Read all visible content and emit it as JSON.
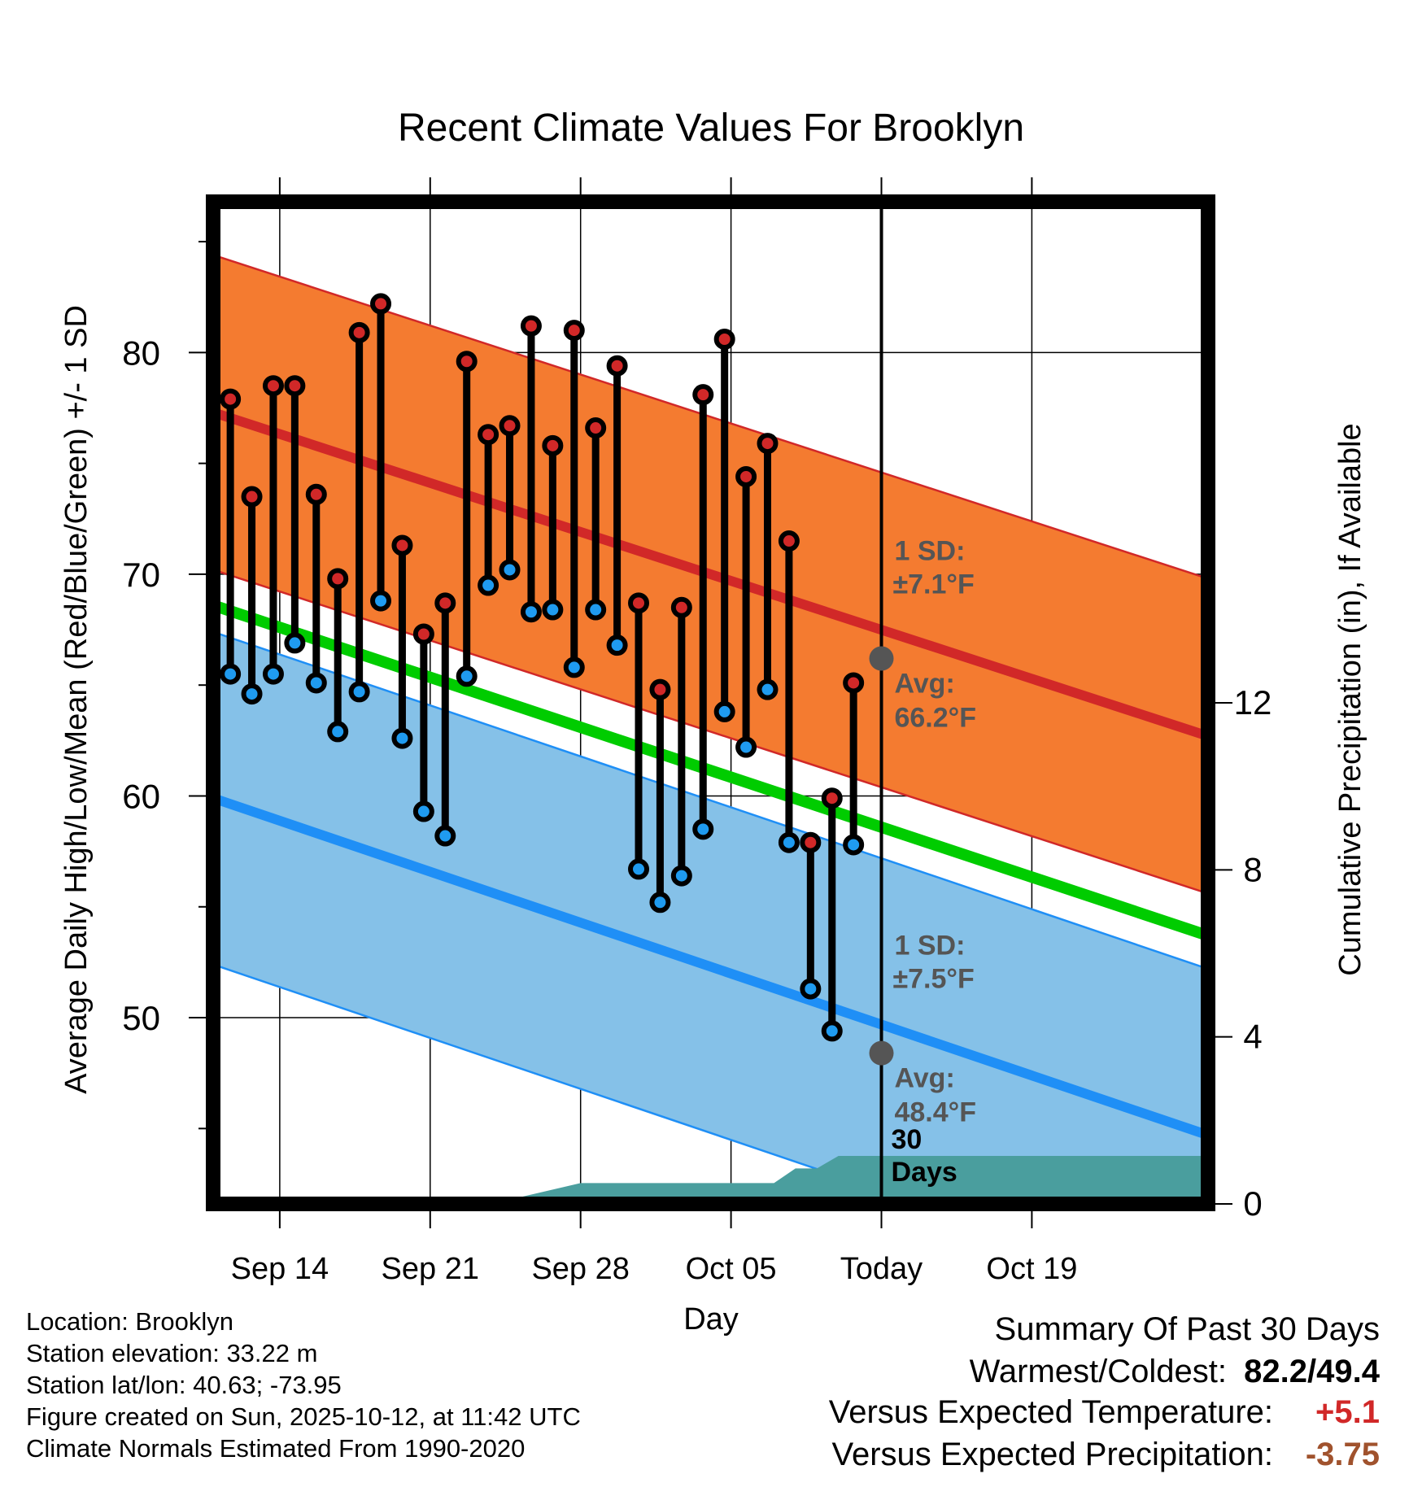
{
  "title": "Recent Climate Values For Brooklyn",
  "chart_data": {
    "type": "line",
    "title": "Recent Climate Values For Brooklyn",
    "xlabel": "Day",
    "ylabel": "Average Daily High/Low/Mean (Red/Blue/Green) +/- 1 SD",
    "y2label": "Cumulative Precipitation (in), If Available",
    "ylim": [
      41.6,
      86.8
    ],
    "y2lim": [
      0,
      24
    ],
    "yticks": [
      50,
      60,
      70,
      80
    ],
    "y2ticks": [
      0,
      4,
      8,
      12
    ],
    "xlim": [
      -0.1,
      46.2
    ],
    "x_tick_labels": [
      {
        "day": 3,
        "label": "Sep 14"
      },
      {
        "day": 10,
        "label": "Sep 21"
      },
      {
        "day": 17,
        "label": "Sep 28"
      },
      {
        "day": 24,
        "label": "Oct 05"
      },
      {
        "day": 31,
        "label": "Today"
      },
      {
        "day": 38,
        "label": "Oct 19"
      }
    ],
    "observed": {
      "days": [
        0.7,
        1.7,
        2.7,
        3.7,
        4.7,
        5.7,
        6.7,
        7.7,
        8.7,
        9.7,
        10.7,
        11.7,
        12.7,
        13.7,
        14.7,
        15.7,
        16.7,
        17.7,
        18.7,
        19.7,
        20.7,
        21.7,
        22.7,
        23.7,
        24.7,
        25.7,
        26.7,
        27.7,
        28.7,
        29.7
      ],
      "highs": [
        77.9,
        73.5,
        78.5,
        78.5,
        73.6,
        69.8,
        80.9,
        82.2,
        71.3,
        67.3,
        68.7,
        79.6,
        76.3,
        76.7,
        81.2,
        75.8,
        81.0,
        76.6,
        79.4,
        68.7,
        64.8,
        68.5,
        78.1,
        80.6,
        74.4,
        75.9,
        71.5,
        57.9,
        59.9,
        65.1
      ],
      "lows": [
        65.5,
        64.6,
        65.5,
        66.9,
        65.1,
        62.9,
        64.7,
        68.8,
        62.6,
        59.3,
        58.2,
        65.4,
        69.5,
        70.2,
        68.3,
        68.4,
        65.8,
        68.4,
        66.8,
        56.7,
        55.2,
        56.4,
        58.5,
        63.8,
        62.2,
        64.8,
        57.9,
        51.3,
        49.4,
        57.8
      ]
    },
    "normal_high": {
      "start": 77.3,
      "end": 62.7,
      "sd": 7.1
    },
    "normal_low": {
      "start": 59.9,
      "end": 44.7,
      "sd": 7.5
    },
    "normal_mean": {
      "start": 68.6,
      "end": 53.7
    },
    "precip_cumulative": {
      "days": [
        -0.1,
        13.1,
        14.1,
        17.0,
        26.0,
        27.0,
        28.0,
        29.0,
        46.2
      ],
      "values": [
        0,
        0,
        0.15,
        0.5,
        0.5,
        0.85,
        0.85,
        1.15,
        1.15
      ]
    },
    "today_day": 31,
    "today_normal_high": 66.2,
    "today_normal_low": 48.4,
    "annotations": {
      "high_sd_label": "1 SD:",
      "high_sd_value": "±7.1°F",
      "high_avg_label": "Avg:",
      "high_avg_value": "66.2°F",
      "low_sd_label": "1 SD:",
      "low_sd_value": "±7.5°F",
      "low_avg_label": "Avg:",
      "low_avg_value": "48.4°F",
      "days_num": "30",
      "days_word": "Days"
    },
    "colors": {
      "high_band": "#F47B30",
      "high_line": "#D12828",
      "low_band": "#85C1E8",
      "low_line": "#1F8FF6",
      "mean_line": "#00CC00",
      "precip": "#4A9E9E",
      "high_dot": "#D12828",
      "low_dot": "#1F9BF0",
      "annotation": "#555555"
    }
  },
  "footer": {
    "location": "Location: Brooklyn",
    "elevation": "Station elevation: 33.22 m",
    "latlon": "Station lat/lon: 40.63; -73.95",
    "created": "Figure created on Sun, 2025-10-12, at 11:42 UTC",
    "normals": "Climate Normals Estimated From 1990-2020"
  },
  "summary": {
    "title": "Summary Of Past 30 Days",
    "warm_cold_label": "Warmest/Coldest:",
    "warm_cold_value": "82.2/49.4",
    "temp_label": "Versus Expected Temperature:",
    "temp_value": "+5.1",
    "temp_color": "#D12828",
    "precip_label": "Versus Expected Precipitation:",
    "precip_value": "-3.75",
    "precip_color": "#A0522D"
  }
}
